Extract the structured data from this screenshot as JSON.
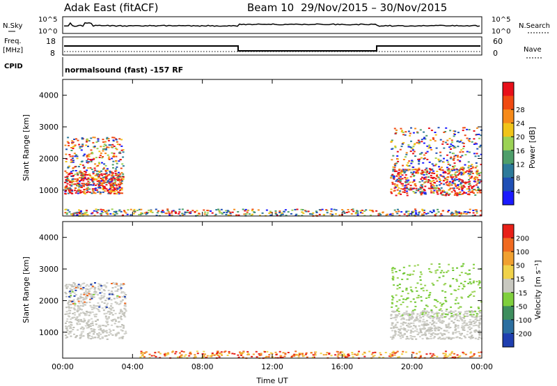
{
  "header": {
    "station": "Adak East (fitACF)",
    "beam": "Beam 10",
    "date_range": "29/Nov/2015 – 30/Nov/2015"
  },
  "status_panels": {
    "nsky_label": "N.Sky",
    "nsky_ticks": [
      "10^5",
      "10^0"
    ],
    "nsearch_label": "N.Search",
    "freq_label_line1": "Freq.",
    "freq_label_line2": "[MHz]",
    "freq_ticks": [
      "18",
      "8"
    ],
    "nave_ticks": [
      "60",
      "0"
    ],
    "nave_label": "Nave",
    "cpid_label": "CPID",
    "cpid_text": "normalsound (fast) -157 RF"
  },
  "chart_data": [
    {
      "type": "heatmap",
      "name": "power-panel",
      "ylabel": "Slant Range [km]",
      "xlabel": "Time UT",
      "x_ticks": [
        "00:00",
        "04:00",
        "08:00",
        "12:00",
        "16:00",
        "20:00",
        "00:00"
      ],
      "y_ticks": [
        "1000",
        "2000",
        "3000",
        "4000"
      ],
      "ylim": [
        180,
        4500
      ],
      "colorbar_label": "Power [dB]",
      "colorbar_ticks": [
        "4",
        "8",
        "12",
        "16",
        "20",
        "24",
        "28"
      ],
      "colorbar_colors": [
        "#1a1aff",
        "#1f4fb5",
        "#2d7a9a",
        "#4e9e6a",
        "#9bd255",
        "#f0c419",
        "#f68a1a",
        "#f04a12",
        "#e8101a"
      ]
    },
    {
      "type": "heatmap",
      "name": "velocity-panel",
      "ylabel": "Slant Range [km]",
      "xlabel": "Time UT",
      "x_ticks": [
        "00:00",
        "04:00",
        "08:00",
        "12:00",
        "16:00",
        "20:00",
        "00:00"
      ],
      "y_ticks": [
        "1000",
        "2000",
        "3000",
        "4000"
      ],
      "ylim": [
        180,
        4500
      ],
      "colorbar_label": "Velocity [m s⁻¹]",
      "colorbar_ticks": [
        "200",
        "100",
        "50",
        "15",
        "-15",
        "-50",
        "-100",
        "-200"
      ],
      "colorbar_colors": [
        "#1f3fb0",
        "#2c6fa0",
        "#3e8e5e",
        "#7fcf3d",
        "#c8c8c0",
        "#f0d24a",
        "#f0a030",
        "#f06a20",
        "#e82018"
      ]
    }
  ],
  "x_axis_title": "Time UT"
}
